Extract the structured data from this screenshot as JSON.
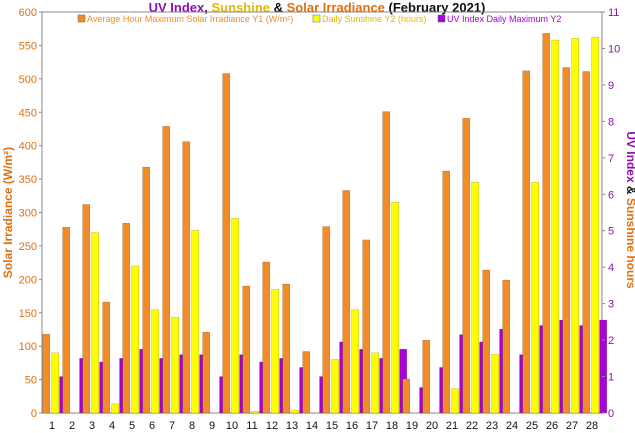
{
  "chart_data": {
    "type": "bar",
    "title_parts": [
      {
        "text": "UV Index",
        "color": "#8b12a8"
      },
      {
        "text": ", ",
        "color": "#111111"
      },
      {
        "text": "Sunshine",
        "color": "#e6b800"
      },
      {
        "text": " & ",
        "color": "#111111"
      },
      {
        "text": "Solar Irradiance",
        "color": "#e07010"
      },
      {
        "text": " (February 2021)",
        "color": "#111111"
      }
    ],
    "categories": [
      "1",
      "2",
      "3",
      "4",
      "5",
      "6",
      "7",
      "8",
      "9",
      "10",
      "11",
      "12",
      "13",
      "14",
      "15",
      "16",
      "17",
      "18",
      "19",
      "20",
      "21",
      "22",
      "23",
      "24",
      "25",
      "26",
      "27",
      "28"
    ],
    "ylabel_left": "Solar Irradiance (W/m²)",
    "ylabel_right_parts": [
      {
        "text": "UV Index",
        "color": "#8b12a8"
      },
      {
        "text": " & ",
        "color": "#111111"
      },
      {
        "text": "Sunshine hours",
        "color": "#e07010"
      }
    ],
    "ylim_left": [
      0,
      600
    ],
    "yticks_left": [
      0,
      50,
      100,
      150,
      200,
      250,
      300,
      350,
      400,
      450,
      500,
      550,
      600
    ],
    "ylim_right": [
      0,
      11
    ],
    "yticks_right": [
      0,
      1,
      2,
      3,
      4,
      5,
      6,
      7,
      8,
      9,
      10,
      11
    ],
    "series": [
      {
        "name": "Average Hour Maximum Solar Irradiance Y1 (W/m²)",
        "axis": "left",
        "color": "#f28c28",
        "values": [
          118,
          278,
          312,
          166,
          284,
          368,
          429,
          406,
          121,
          508,
          190,
          226,
          193,
          92,
          279,
          333,
          259,
          451,
          51,
          109,
          362,
          441,
          214,
          199,
          512,
          568,
          517,
          511
        ]
      },
      {
        "name": "Daily Sunshine Y2 (hours)",
        "axis": "right",
        "color": "#ffff00",
        "values": [
          1.65,
          0.0,
          4.95,
          0.25,
          4.03,
          2.83,
          2.63,
          5.01,
          0.0,
          5.34,
          0.05,
          3.39,
          0.08,
          0.0,
          1.47,
          2.83,
          1.65,
          5.78,
          0.0,
          0.0,
          0.67,
          6.33,
          1.61,
          0.0,
          6.33,
          10.23,
          10.28,
          10.31
        ]
      },
      {
        "name": "UV Index Daily Maximum Y2",
        "axis": "right",
        "color": "#a800d8",
        "values": [
          1.0,
          1.5,
          1.4,
          1.5,
          1.75,
          1.5,
          1.6,
          1.6,
          1.0,
          1.6,
          1.4,
          1.5,
          1.25,
          1.0,
          1.95,
          1.75,
          1.5,
          1.75,
          0.7,
          1.25,
          2.15,
          1.95,
          2.3,
          1.6,
          2.4,
          2.55,
          2.4,
          2.55
        ]
      }
    ],
    "legend_position": "top"
  }
}
